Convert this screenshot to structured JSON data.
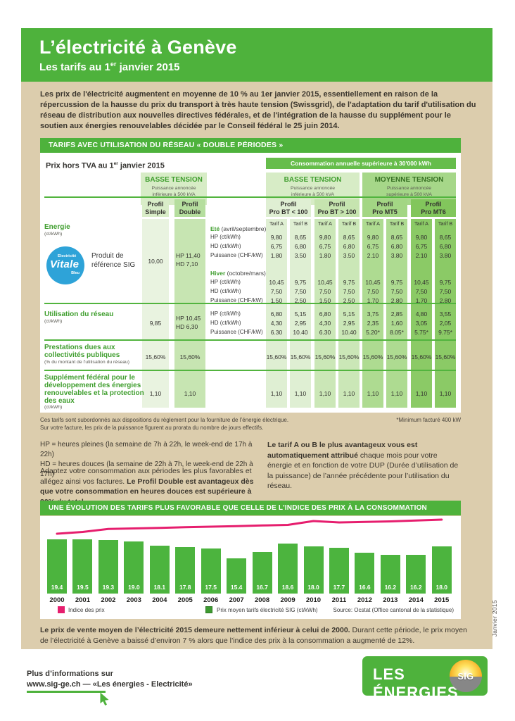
{
  "colors": {
    "green": "#4eb23c",
    "green_text": "#3f9e2e",
    "beige": "#dccdad",
    "pink": "#e61e6e",
    "col_simple": "#e9f3e0",
    "col_double": "#c7e5b2",
    "col_bt_lt": "#dfefd3",
    "col_bt_gt": "#cbe7b7",
    "col_mt5": "#aedb91",
    "col_mt6": "#8bca66",
    "hdr_group_light": "#d7ecc6",
    "hdr_group_dark": "#a6d789",
    "consumption_bar": "#66bd4b",
    "vitale_blue": "#2ea3d8"
  },
  "header": {
    "title": "L’électricité à Genève",
    "subtitle_pre": "Les tarifs au 1",
    "subtitle_sup": "er",
    "subtitle_post": " janvier 2015"
  },
  "intro": "Les prix de l'électricité augmentent en moyenne de 10 % au 1er janvier 2015, essentiellement en raison de la répercussion de la hausse du prix du transport à très haute tension (Swissgrid), de l'adaptation du tarif d'utilisation du réseau de distribution aux nouvelles directives fédérales, et de l'intégration de la hausse du supplément pour le soutien aux énergies renouvelables décidée par le Conseil fédéral le 25 juin 2014.",
  "tariff": {
    "banner": "TARIFS AVEC UTILISATION DU RÉSEAU « DOUBLE PÉRIODES »",
    "price_note_pre": "Prix hors TVA au 1",
    "price_note_sup": "er",
    "price_note_post": " janvier 2015",
    "consumption_header": "Consommation annuelle supérieure à 30'000 kWh",
    "groups": [
      {
        "title": "BASSE TENSION",
        "sub1": "Puissance annoncée",
        "sub2": "inférieure à 500 kVA"
      },
      {
        "title": "BASSE TENSION",
        "sub1": "Puissance annoncée",
        "sub2": "inférieure à 500 kVA"
      },
      {
        "title": "MOYENNE TENSION",
        "sub1": "Puissance annoncée",
        "sub2": "supérieure à 500 kVA"
      }
    ],
    "profiles": [
      {
        "l1": "Profil",
        "l2": "Simple"
      },
      {
        "l1": "Profil",
        "l2": "Double"
      },
      {
        "l1": "Profil",
        "l2": "Pro BT < 100"
      },
      {
        "l1": "Profil",
        "l2": "Pro BT > 100"
      },
      {
        "l1": "Profil",
        "l2": "Pro MT5"
      },
      {
        "l1": "Profil",
        "l2": "Pro MT6"
      }
    ],
    "tarif_headers": [
      "Tarif A",
      "Tarif B",
      "Tarif A",
      "Tarif B",
      "Tarif A",
      "Tarif B",
      "Tarif A",
      "Tarif B"
    ],
    "rows": {
      "energie": {
        "label": "Energie",
        "unit": "(ct/kWh)",
        "badge": {
          "top": "Electricité",
          "main": "Vitale",
          "bottom": "Bleu"
        },
        "product_l1": "Produit de",
        "product_l2": "référence SIG",
        "simple": "10,00",
        "double_hp": "HP 11,40",
        "double_hd": "HD  7,10",
        "ete_label": "Eté",
        "ete_sub": " (avril/septembre)",
        "hiver_label": "Hiver",
        "hiver_sub": " (octobre/mars)",
        "hp_name": "HP (ct/kWh)",
        "hd_name": "HD (ct/kWh)",
        "puissance_name": "Puissance (CHF/kW)",
        "ete": {
          "hp": [
            "9,80",
            "8,65",
            "9,80",
            "8,65",
            "9,80",
            "8,65",
            "9,80",
            "8,65"
          ],
          "hd": [
            "6,75",
            "6,80",
            "6,75",
            "6,80",
            "6,75",
            "6,80",
            "6,75",
            "6,80"
          ],
          "puissance": [
            "1.80",
            "3.50",
            "1.80",
            "3.50",
            "2.10",
            "3.80",
            "2.10",
            "3.80"
          ]
        },
        "hiver": {
          "hp": [
            "10,45",
            "9,75",
            "10,45",
            "9,75",
            "10,45",
            "9,75",
            "10,45",
            "9,75"
          ],
          "hd": [
            "7,50",
            "7,50",
            "7,50",
            "7,50",
            "7,50",
            "7,50",
            "7,50",
            "7,50"
          ],
          "puissance": [
            "1.50",
            "2.50",
            "1.50",
            "2.50",
            "1.70",
            "2.80",
            "1.70",
            "2.80"
          ]
        }
      },
      "utilisation": {
        "label": "Utilisation du réseau",
        "unit": "(ct/kWh)",
        "simple": "9,85",
        "double_hp": "HP 10,45",
        "double_hd": "HD  6,30",
        "hp_name": "HP (ct/kWh)",
        "hd_name": "HD (ct/kWh)",
        "puissance_name": "Puissance (CHF/kW)",
        "hp": [
          "6,80",
          "5,15",
          "6,80",
          "5,15",
          "3,75",
          "2,85",
          "4,80",
          "3,55"
        ],
        "hd": [
          "4,30",
          "2,95",
          "4,30",
          "2,95",
          "2,35",
          "1,60",
          "3,05",
          "2,05"
        ],
        "puissance": [
          "6.30",
          "10.40",
          "6.30",
          "10.40",
          "5.20*",
          "8.05*",
          "5.75*",
          "9.75*"
        ]
      },
      "prestations": {
        "label_l1": "Prestations dues aux",
        "label_l2": "collectivités publiques",
        "unit": "(% du montant de l'utilisation du réseau)",
        "simple": "15,60%",
        "double": "15,60%",
        "values": [
          "15,60%",
          "15,60%",
          "15,60%",
          "15,60%",
          "15,60%",
          "15,60%",
          "15,60%",
          "15,60%"
        ]
      },
      "supplement": {
        "label_l1": "Supplément fédéral pour le",
        "label_l2": "développement des énergies",
        "label_l3": "renouvelables et la protection",
        "label_l4": "des eaux",
        "unit": "(ct/kWh)",
        "simple": "1,10",
        "double": "1,10",
        "values": [
          "1,10",
          "1,10",
          "1,10",
          "1,10",
          "1,10",
          "1,10",
          "1,10",
          "1,10"
        ]
      }
    },
    "footnotes": {
      "line1": "Ces tarifs sont subordonnés aux dispositions du règlement pour la fourniture de l’énergie électrique.",
      "line2": "Sur votre facture, les prix de la puissance figurent au prorata du nombre de jours effectifs.",
      "minimum": "*Minimum facturé 400 kW"
    }
  },
  "info": {
    "hp_def": "HP = heures pleines (la semaine de 7h à 22h, le week-end de 17h à 22h)",
    "hd_def": "HD = heures douces (la semaine de 22h à 7h, le week-end de 22h à 17h)",
    "advice_normal": "Adaptez votre consommation aux périodes les plus favorables et allégez ainsi vos factures. ",
    "advice_bold": "Le Profil Double est avantageux dès que votre consommation en heures douces est supérieure à 20% du total.",
    "tarif_bold": "Le tarif A ou B le plus avantageux vous est automatiquement attribué",
    "tarif_normal": " chaque mois pour votre énergie et en fonction de votre DUP (Durée d’utilisation de la puissance) de l’année précédente pour l’utilisation du réseau."
  },
  "evolution": {
    "banner": "UNE ÉVOLUTION DES TARIFS PLUS FAVORABLE QUE CELLE DE L'INDICE DES PRIX À LA CONSOMMATION",
    "legend_pink": "Indice des prix",
    "legend_green": "Prix moyen tarifs électricité SIG (ct/kWh)",
    "source": "Source: Ocstat (Office cantonal de la statistique)",
    "conclusion_bold": "Le prix de vente moyen de l’électricité 2015 demeure nettement inférieur à celui de 2000.",
    "conclusion_normal": " Durant cette période, le prix moyen de l’électricité à Genève a baissé d’environ 7 % alors que l’indice des prix à la consommation a augmenté de 12%."
  },
  "chart_data": {
    "type": "bar+line",
    "categories": [
      "2000",
      "2001",
      "2002",
      "2003",
      "2004",
      "2005",
      "2006",
      "2007",
      "2008",
      "2009",
      "2010",
      "2011",
      "2012",
      "2013",
      "2014",
      "2015"
    ],
    "series": [
      {
        "name": "Prix moyen tarifs électricité SIG (ct/kWh)",
        "type": "bar",
        "color": "#4cb43e",
        "values": [
          19.4,
          19.5,
          19.3,
          19.0,
          18.1,
          17.8,
          17.5,
          15.4,
          16.7,
          18.6,
          18.0,
          17.7,
          16.6,
          16.2,
          16.2,
          18.0
        ]
      },
      {
        "name": "Indice des prix",
        "type": "line",
        "color": "#e61e6e",
        "values_estimated_index": [
          100,
          101.5,
          104,
          104.5,
          105,
          105.5,
          106,
          106.5,
          107,
          107.5,
          110.8,
          109.6,
          110,
          110.5,
          111.2,
          112
        ]
      }
    ],
    "title": "UNE ÉVOLUTION DES TARIFS PLUS FAVORABLE QUE CELLE DE L'INDICE DES PRIX À LA CONSOMMATION",
    "xlabel": "",
    "ylabel": "ct/kWh",
    "ylim": [
      0,
      20
    ],
    "legend_position": "bottom",
    "source": "Source: Ocstat (Office cantonal de la statistique)"
  },
  "footer": {
    "more_info_1": "Plus d’informations sur",
    "more_info_2": "www.sig-ge.ch",
    "more_info_3": " — «Les énergies - Electricité»",
    "logo_text": "LES ÉNERGIES",
    "logo_sig": "SIG",
    "side_note": "Janvier 2015"
  }
}
